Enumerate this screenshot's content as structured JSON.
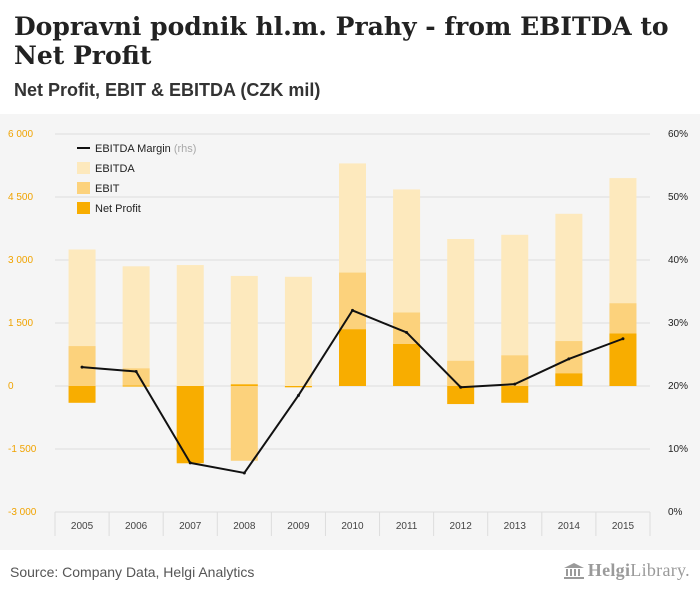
{
  "header": {
    "title": "Dopravni podnik hl.m. Prahy - from EBITDA to Net Profit",
    "subtitle": "Net Profit, EBIT & EBITDA (CZK mil)"
  },
  "footer": {
    "source": "Source: Company Data, Helgi Analytics",
    "logo_text_bold": "Helgi",
    "logo_text_rest": "Library."
  },
  "colors": {
    "ebitda": "#fde9bd",
    "ebit": "#fcd27c",
    "net_profit": "#f8ad00",
    "margin_line": "#111111",
    "left_axis_text": "#f0a300",
    "right_axis_text": "#222222",
    "grid": "#dddddd"
  },
  "chart_data": {
    "type": "bar",
    "title": "Dopravni podnik hl.m. Prahy - from EBITDA to Net Profit",
    "subtitle": "Net Profit, EBIT & EBITDA (CZK mil)",
    "categories": [
      "2005",
      "2006",
      "2007",
      "2008",
      "2009",
      "2010",
      "2011",
      "2012",
      "2013",
      "2014",
      "2015"
    ],
    "series": [
      {
        "name": "EBITDA",
        "axis": "left",
        "values": [
          3250,
          2850,
          2880,
          2620,
          2600,
          5300,
          4680,
          3500,
          3600,
          4100,
          4950
        ]
      },
      {
        "name": "EBIT",
        "axis": "left",
        "values": [
          950,
          420,
          -1820,
          -1780,
          -30,
          2700,
          1750,
          600,
          730,
          1070,
          1970
        ]
      },
      {
        "name": "Net Profit",
        "axis": "left",
        "values": [
          -400,
          10,
          -1840,
          40,
          -30,
          1350,
          1000,
          -430,
          -400,
          300,
          1250
        ]
      },
      {
        "name": "EBITDA Margin",
        "axis": "right",
        "type": "line",
        "unit": "%",
        "values": [
          23.0,
          22.3,
          7.8,
          6.2,
          18.5,
          32.0,
          28.5,
          19.8,
          20.3,
          24.3,
          27.5
        ]
      }
    ],
    "legend": [
      {
        "label": "EBITDA Margin",
        "note": "(rhs)",
        "swatch": "line"
      },
      {
        "label": "EBITDA",
        "note": "",
        "swatch": "box"
      },
      {
        "label": "EBIT",
        "note": "",
        "swatch": "box"
      },
      {
        "label": "Net Profit",
        "note": "",
        "swatch": "box"
      }
    ],
    "legend_position": "top-left",
    "ylim": [
      -3000,
      6000
    ],
    "yticks": [
      6000,
      4500,
      3000,
      1500,
      0,
      -1500,
      -3000
    ],
    "ytick_labels": [
      "6 000",
      "4 500",
      "3 000",
      "1 500",
      "0",
      "-1 500",
      "-3 000"
    ],
    "y2lim": [
      0,
      60
    ],
    "y2ticks": [
      60,
      50,
      40,
      30,
      20,
      10,
      0
    ],
    "y2tick_labels": [
      "60%",
      "50%",
      "40%",
      "30%",
      "20%",
      "10%",
      "0%"
    ],
    "xlabel": "",
    "ylabel": "",
    "grid": true
  }
}
